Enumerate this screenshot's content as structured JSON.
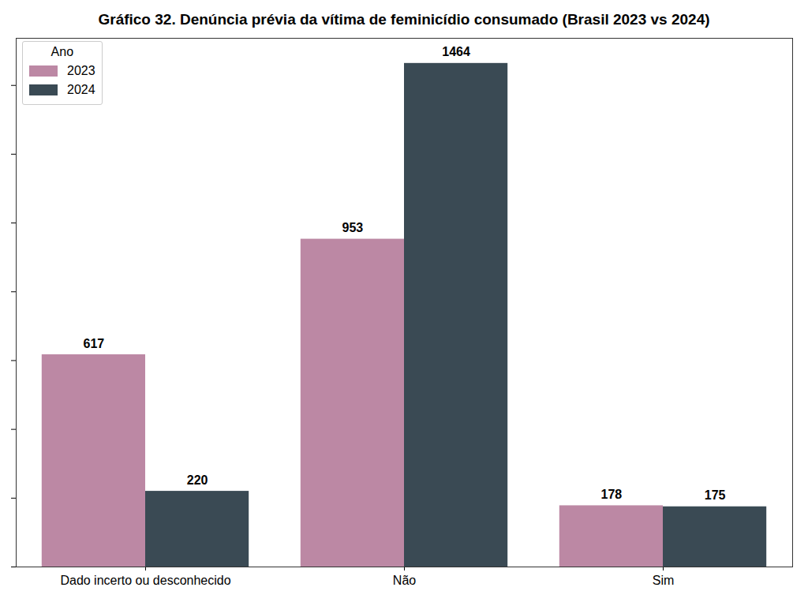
{
  "chart_data": {
    "type": "bar",
    "title": "Gráfico 32. Denúncia prévia da vítima de feminicídio consumado (Brasil 2023 vs 2024)",
    "categories": [
      "Dado incerto ou desconhecido",
      "Não",
      "Sim"
    ],
    "series": [
      {
        "name": "2023",
        "color": "#bc88a4",
        "values": [
          617,
          953,
          178
        ]
      },
      {
        "name": "2024",
        "color": "#3a4a54",
        "values": [
          220,
          1464,
          175
        ]
      }
    ],
    "legend_title": "Ano",
    "legend": "upper left",
    "ylim": [
      0,
      1537
    ],
    "yticks": [
      0,
      200,
      400,
      600,
      800,
      1000,
      1200,
      1400
    ],
    "tick_labels": "x",
    "data_labels": true,
    "grid": false
  }
}
